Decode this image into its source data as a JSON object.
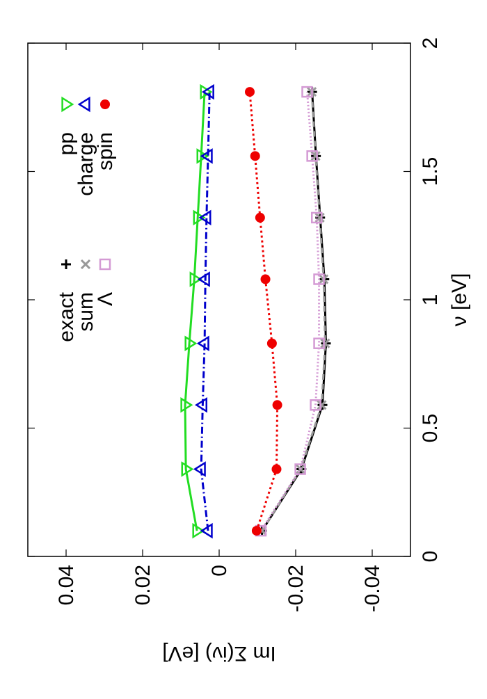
{
  "chart_data": {
    "type": "line",
    "xlabel": "ν [eV]",
    "ylabel": "Im Σ(iν) [eV]",
    "xlim": [
      0,
      2
    ],
    "xticks": [
      0,
      0.5,
      1,
      1.5,
      2
    ],
    "ylim": [
      -0.05,
      0.05
    ],
    "yticks": [
      -0.04,
      -0.02,
      0,
      0.02,
      0.04
    ],
    "x": [
      0.1,
      0.34,
      0.59,
      0.83,
      1.08,
      1.32,
      1.56,
      1.81
    ],
    "series": [
      {
        "name": "exact",
        "color": "#000000",
        "marker": "plus",
        "dash": "none",
        "values": [
          -0.0112,
          -0.0215,
          -0.027,
          -0.0279,
          -0.0275,
          -0.0264,
          -0.0253,
          -0.0243
        ]
      },
      {
        "name": "sum",
        "color": "#999999",
        "marker": "cross",
        "dash": "8,6",
        "values": [
          -0.0112,
          -0.0213,
          -0.0268,
          -0.0277,
          -0.0273,
          -0.0263,
          -0.0252,
          -0.0242
        ]
      },
      {
        "name": "Λ",
        "color": "#d49ad4",
        "marker": "square",
        "dash": "2,3",
        "values": [
          -0.0109,
          -0.0212,
          -0.0252,
          -0.0261,
          -0.0261,
          -0.0255,
          -0.0243,
          -0.023
        ]
      },
      {
        "name": "pp",
        "color": "#22dd22",
        "marker": "tridown",
        "dash": "none",
        "values": [
          0.0058,
          0.0087,
          0.0089,
          0.0078,
          0.0065,
          0.0056,
          0.0047,
          0.0038
        ]
      },
      {
        "name": "charge",
        "color": "#0000cc",
        "marker": "triup",
        "dash": "10,4,2,4",
        "values": [
          0.0029,
          0.0047,
          0.0043,
          0.0038,
          0.0036,
          0.0033,
          0.0029,
          0.0025
        ]
      },
      {
        "name": "spin",
        "color": "#ee0000",
        "marker": "circle",
        "dash": "3,4",
        "values": [
          -0.0098,
          -0.015,
          -0.0152,
          -0.0138,
          -0.0121,
          -0.0107,
          -0.0094,
          -0.008
        ]
      }
    ]
  }
}
